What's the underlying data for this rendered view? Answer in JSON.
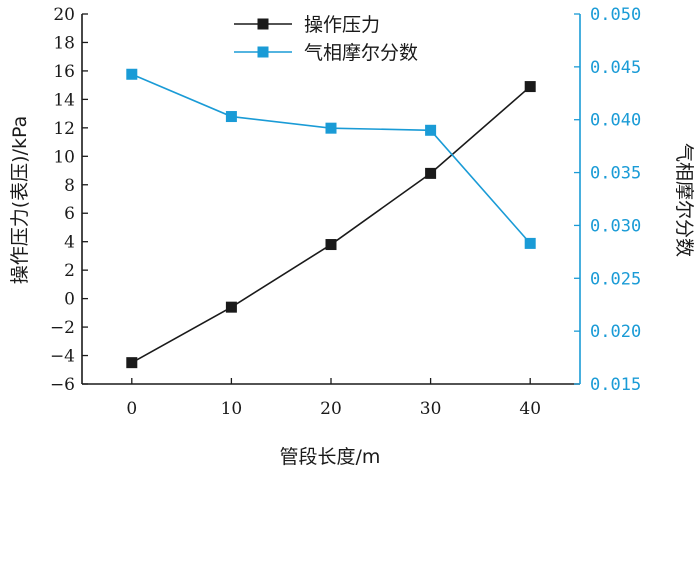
{
  "chart_data": {
    "type": "line",
    "x": [
      0,
      10,
      20,
      30,
      40
    ],
    "xlabel": "管段长度/m",
    "xlim": [
      -5,
      45
    ],
    "xticks": [
      "0",
      "10",
      "20",
      "30",
      "40"
    ],
    "ylabel_left": "操作压力(表压)/kPa",
    "ylim_left": [
      -6,
      20
    ],
    "yticks_left": [
      "-6",
      "-4",
      "-2",
      "0",
      "2",
      "4",
      "6",
      "8",
      "10",
      "12",
      "14",
      "16",
      "18",
      "20"
    ],
    "ylabel_right": "气相摩尔分数",
    "ylim_right": [
      0.015,
      0.05
    ],
    "yticks_right": [
      "0.015",
      "0.020",
      "0.025",
      "0.030",
      "0.035",
      "0.040",
      "0.045",
      "0.050"
    ],
    "legend_position": "top-center",
    "grid": false,
    "series": [
      {
        "name": "操作压力",
        "axis": "left",
        "color": "#1a1a1a",
        "marker": "square",
        "values": [
          -4.5,
          -0.6,
          3.8,
          8.8,
          14.9
        ]
      },
      {
        "name": "气相摩尔分数",
        "axis": "right",
        "color": "#1a9bd6",
        "marker": "square",
        "values": [
          0.0443,
          0.0403,
          0.0392,
          0.039,
          0.0283
        ]
      }
    ]
  }
}
